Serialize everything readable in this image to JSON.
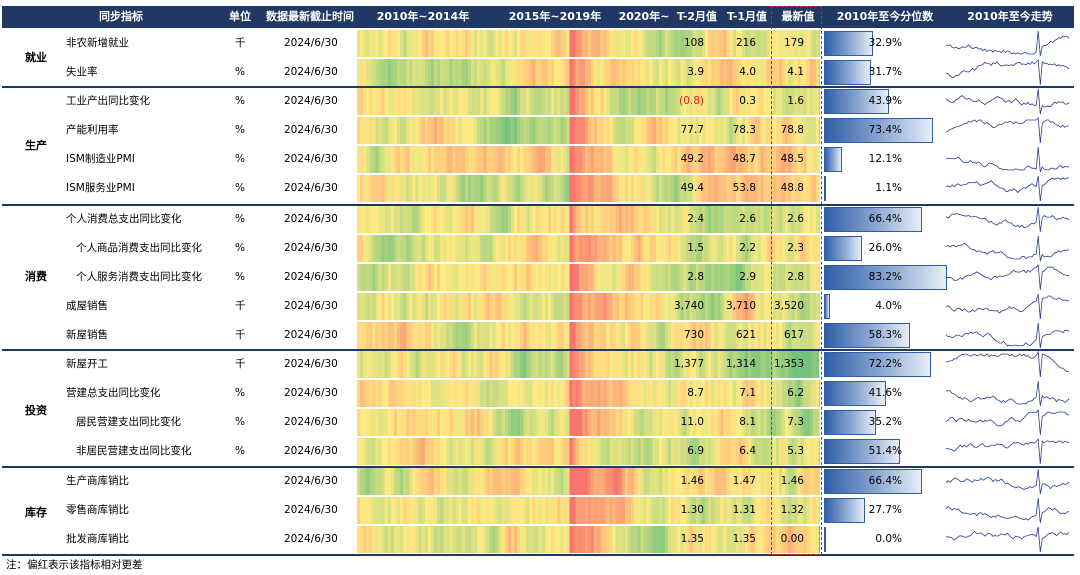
{
  "headers": {
    "indicator": "同步指标",
    "unit": "单位",
    "date": "数据最新截止时间",
    "p1": "2010年~2014年",
    "p2": "2015年~2019年",
    "p3": "2020年~",
    "t2": "T-2月值",
    "t1": "T-1月值",
    "latest": "最新值",
    "pctl": "2010年至今分位数",
    "trend": "2010年至今走势"
  },
  "sectors": [
    "就业",
    "生产",
    "消费",
    "投资",
    "库存"
  ],
  "rows": [
    {
      "name": "非农新增就业",
      "unit": "千",
      "date": "2024/6/30",
      "t2": "108",
      "t1": "216",
      "latest": "179",
      "pct": "32.9%",
      "pv": 0.329,
      "indent": 0,
      "t2red": false
    },
    {
      "name": "失业率",
      "unit": "%",
      "date": "2024/6/30",
      "t2": "3.9",
      "t1": "4.0",
      "latest": "4.1",
      "pct": "31.7%",
      "pv": 0.317,
      "indent": 0,
      "t2red": false
    },
    {
      "name": "工业产出同比变化",
      "unit": "%",
      "date": "2024/6/30",
      "t2": "(0.8)",
      "t1": "0.3",
      "latest": "1.6",
      "pct": "43.9%",
      "pv": 0.439,
      "indent": 0,
      "t2red": true
    },
    {
      "name": "产能利用率",
      "unit": "%",
      "date": "2024/6/30",
      "t2": "77.7",
      "t1": "78.3",
      "latest": "78.8",
      "pct": "73.4%",
      "pv": 0.734,
      "indent": 0,
      "t2red": false
    },
    {
      "name": "ISM制造业PMI",
      "unit": "%",
      "date": "2024/6/30",
      "t2": "49.2",
      "t1": "48.7",
      "latest": "48.5",
      "pct": "12.1%",
      "pv": 0.121,
      "indent": 0,
      "t2red": false
    },
    {
      "name": "ISM服务业PMI",
      "unit": "%",
      "date": "2024/6/30",
      "t2": "49.4",
      "t1": "53.8",
      "latest": "48.8",
      "pct": "1.1%",
      "pv": 0.011,
      "indent": 0,
      "t2red": false
    },
    {
      "name": "个人消费总支出同比变化",
      "unit": "%",
      "date": "2024/6/30",
      "t2": "2.4",
      "t1": "2.6",
      "latest": "2.6",
      "pct": "66.4%",
      "pv": 0.664,
      "indent": 0,
      "t2red": false
    },
    {
      "name": "个人商品消费支出同比变化",
      "unit": "%",
      "date": "2024/6/30",
      "t2": "1.5",
      "t1": "2.2",
      "latest": "2.3",
      "pct": "26.0%",
      "pv": 0.26,
      "indent": 1,
      "t2red": false
    },
    {
      "name": "个人服务消费支出同比变化",
      "unit": "%",
      "date": "2024/6/30",
      "t2": "2.8",
      "t1": "2.9",
      "latest": "2.8",
      "pct": "83.2%",
      "pv": 0.832,
      "indent": 1,
      "t2red": false
    },
    {
      "name": "成屋销售",
      "unit": "千",
      "date": "2024/6/30",
      "t2": "3,740",
      "t1": "3,710",
      "latest": "3,520",
      "pct": "4.0%",
      "pv": 0.04,
      "indent": 0,
      "t2red": false
    },
    {
      "name": "新屋销售",
      "unit": "千",
      "date": "2024/6/30",
      "t2": "730",
      "t1": "621",
      "latest": "617",
      "pct": "58.3%",
      "pv": 0.583,
      "indent": 0,
      "t2red": false
    },
    {
      "name": "新屋开工",
      "unit": "千",
      "date": "2024/6/30",
      "t2": "1,377",
      "t1": "1,314",
      "latest": "1,353",
      "pct": "72.2%",
      "pv": 0.722,
      "indent": 0,
      "t2red": false
    },
    {
      "name": "营建总支出同比变化",
      "unit": "%",
      "date": "2024/6/30",
      "t2": "8.7",
      "t1": "7.1",
      "latest": "6.2",
      "pct": "41.6%",
      "pv": 0.416,
      "indent": 0,
      "t2red": false
    },
    {
      "name": "居民营建支出同比变化",
      "unit": "%",
      "date": "2024/6/30",
      "t2": "11.0",
      "t1": "8.1",
      "latest": "7.3",
      "pct": "35.2%",
      "pv": 0.352,
      "indent": 1,
      "t2red": false
    },
    {
      "name": "非居民营建支出同比变化",
      "unit": "%",
      "date": "2024/6/30",
      "t2": "6.9",
      "t1": "6.4",
      "latest": "5.3",
      "pct": "51.4%",
      "pv": 0.514,
      "indent": 1,
      "t2red": false
    },
    {
      "name": "生产商库销比",
      "unit": "",
      "date": "2024/6/30",
      "t2": "1.46",
      "t1": "1.47",
      "latest": "1.46",
      "pct": "66.4%",
      "pv": 0.664,
      "indent": 0,
      "t2red": false
    },
    {
      "name": "零售商库销比",
      "unit": "",
      "date": "2024/6/30",
      "t2": "1.30",
      "t1": "1.31",
      "latest": "1.32",
      "pct": "27.7%",
      "pv": 0.277,
      "indent": 0,
      "t2red": false
    },
    {
      "name": "批发商库销比",
      "unit": "",
      "date": "2024/6/30",
      "t2": "1.35",
      "t1": "1.35",
      "latest": "0.00",
      "pct": "0.0%",
      "pv": 0.0,
      "indent": 0,
      "t2red": false
    }
  ],
  "note": "注：偏红表示该指标相对更差",
  "colors": {
    "header": "#1F3864",
    "red": "#E0201D",
    "bar": "#2E5FA6"
  }
}
